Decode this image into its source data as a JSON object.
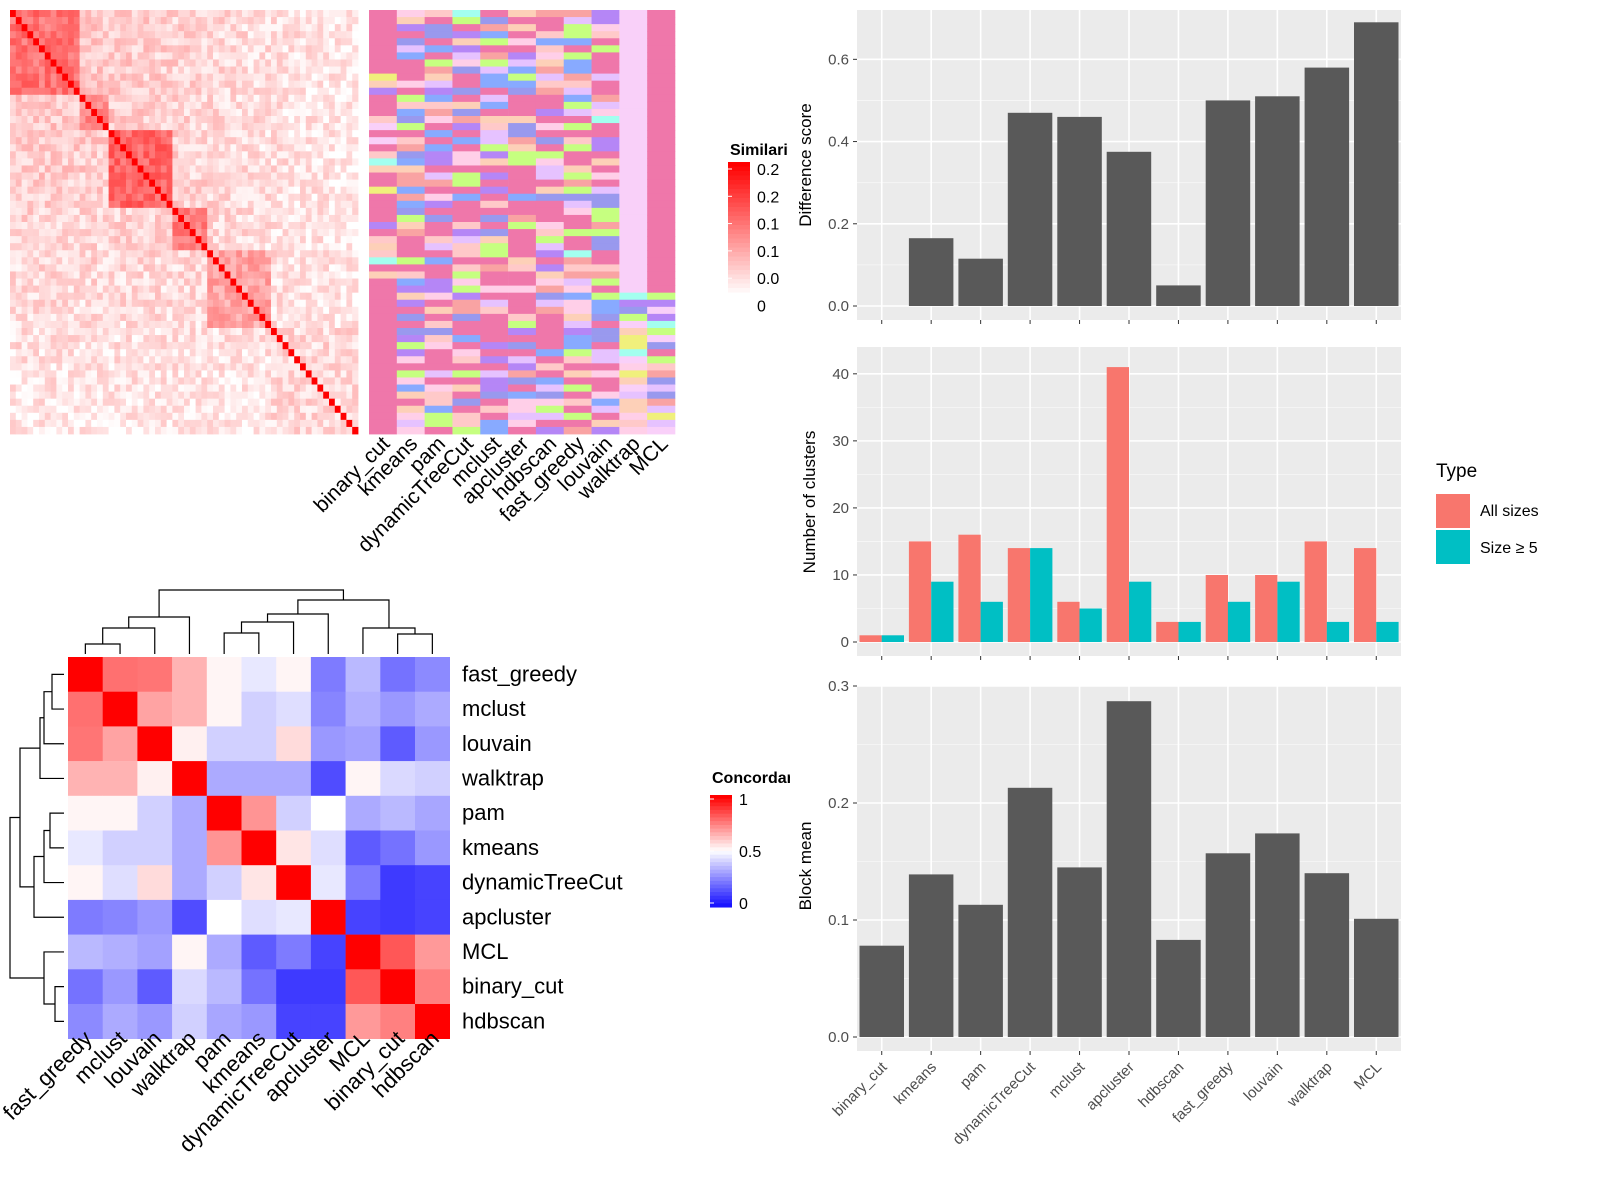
{
  "chart_data": [
    {
      "type": "heatmap",
      "panel": "cell similarity with cluster annotations",
      "legend": {
        "title": "Similarity",
        "ticks": [
          "0.2",
          "0.2",
          "0.1",
          "0.1",
          "0.0",
          "0"
        ]
      },
      "columns": [
        "binary_cut",
        "kmeans",
        "pam",
        "dynamicTreeCut",
        "mclust",
        "apcluster",
        "hdbscan",
        "fast_greedy",
        "louvain",
        "walktrap",
        "MCL"
      ]
    },
    {
      "type": "heatmap",
      "panel": "method concordance",
      "legend": {
        "title": "Concordance",
        "ticks": [
          "1",
          "0.5",
          "0"
        ],
        "range": [
          0,
          1
        ]
      },
      "rows": [
        "fast_greedy",
        "mclust",
        "louvain",
        "walktrap",
        "pam",
        "kmeans",
        "dynamicTreeCut",
        "apcluster",
        "MCL",
        "binary_cut",
        "hdbscan"
      ],
      "columns": [
        "fast_greedy",
        "mclust",
        "louvain",
        "walktrap",
        "pam",
        "kmeans",
        "dynamicTreeCut",
        "apcluster",
        "MCL",
        "binary_cut",
        "hdbscan"
      ],
      "values": [
        [
          1.0,
          0.78,
          0.77,
          0.65,
          0.52,
          0.45,
          0.52,
          0.22,
          0.35,
          0.2,
          0.25
        ],
        [
          0.78,
          1.0,
          0.68,
          0.65,
          0.52,
          0.4,
          0.43,
          0.24,
          0.33,
          0.28,
          0.32
        ],
        [
          0.77,
          0.68,
          1.0,
          0.53,
          0.4,
          0.4,
          0.57,
          0.28,
          0.3,
          0.15,
          0.28
        ],
        [
          0.65,
          0.65,
          0.53,
          1.0,
          0.32,
          0.32,
          0.32,
          0.12,
          0.52,
          0.42,
          0.4
        ],
        [
          0.52,
          0.52,
          0.4,
          0.32,
          1.0,
          0.71,
          0.4,
          0.5,
          0.32,
          0.35,
          0.31
        ],
        [
          0.45,
          0.4,
          0.4,
          0.32,
          0.71,
          1.0,
          0.55,
          0.43,
          0.15,
          0.2,
          0.28
        ],
        [
          0.52,
          0.43,
          0.57,
          0.32,
          0.4,
          0.55,
          1.0,
          0.45,
          0.22,
          0.08,
          0.1
        ],
        [
          0.22,
          0.24,
          0.28,
          0.12,
          0.5,
          0.43,
          0.45,
          1.0,
          0.1,
          0.08,
          0.1
        ],
        [
          0.35,
          0.33,
          0.3,
          0.52,
          0.32,
          0.15,
          0.22,
          0.1,
          1.0,
          0.83,
          0.7
        ],
        [
          0.2,
          0.28,
          0.15,
          0.42,
          0.35,
          0.2,
          0.08,
          0.08,
          0.83,
          1.0,
          0.75
        ],
        [
          0.25,
          0.32,
          0.28,
          0.4,
          0.31,
          0.28,
          0.1,
          0.1,
          0.7,
          0.75,
          1.0
        ]
      ]
    },
    {
      "type": "bar",
      "panel": "difference score",
      "ylabel": "Difference score",
      "ylim": [
        0,
        0.72
      ],
      "yticks": [
        "0.0",
        "0.2",
        "0.4",
        "0.6"
      ],
      "categories": [
        "binary_cut",
        "kmeans",
        "pam",
        "dynamicTreeCut",
        "mclust",
        "apcluster",
        "hdbscan",
        "fast_greedy",
        "louvain",
        "walktrap",
        "MCL"
      ],
      "values": [
        0.0,
        0.165,
        0.115,
        0.47,
        0.46,
        0.375,
        0.05,
        0.5,
        0.51,
        0.58,
        0.69
      ]
    },
    {
      "type": "bar",
      "panel": "number of clusters",
      "ylabel": "Number of clusters",
      "ylim": [
        0,
        44
      ],
      "yticks": [
        "0",
        "10",
        "20",
        "30",
        "40"
      ],
      "categories": [
        "binary_cut",
        "kmeans",
        "pam",
        "dynamicTreeCut",
        "mclust",
        "apcluster",
        "hdbscan",
        "fast_greedy",
        "louvain",
        "walktrap",
        "MCL"
      ],
      "legend": {
        "title": "Type",
        "placement": "right"
      },
      "series": [
        {
          "name": "All sizes",
          "color": "#f8766d",
          "values": [
            1,
            15,
            16,
            14,
            6,
            41,
            3,
            10,
            10,
            15,
            14
          ]
        },
        {
          "name": "Size ≥ 5",
          "color": "#00bfc4",
          "values": [
            1,
            9,
            6,
            14,
            5,
            9,
            3,
            6,
            9,
            3,
            3
          ]
        }
      ]
    },
    {
      "type": "bar",
      "panel": "block mean",
      "ylabel": "Block mean",
      "ylim": [
        0,
        0.3
      ],
      "yticks": [
        "0.0",
        "0.1",
        "0.2",
        "0.3"
      ],
      "categories": [
        "binary_cut",
        "kmeans",
        "pam",
        "dynamicTreeCut",
        "mclust",
        "apcluster",
        "hdbscan",
        "fast_greedy",
        "louvain",
        "walktrap",
        "MCL"
      ],
      "values": [
        0.078,
        0.139,
        0.113,
        0.213,
        0.145,
        0.287,
        0.083,
        0.157,
        0.174,
        0.14,
        0.101
      ]
    }
  ]
}
